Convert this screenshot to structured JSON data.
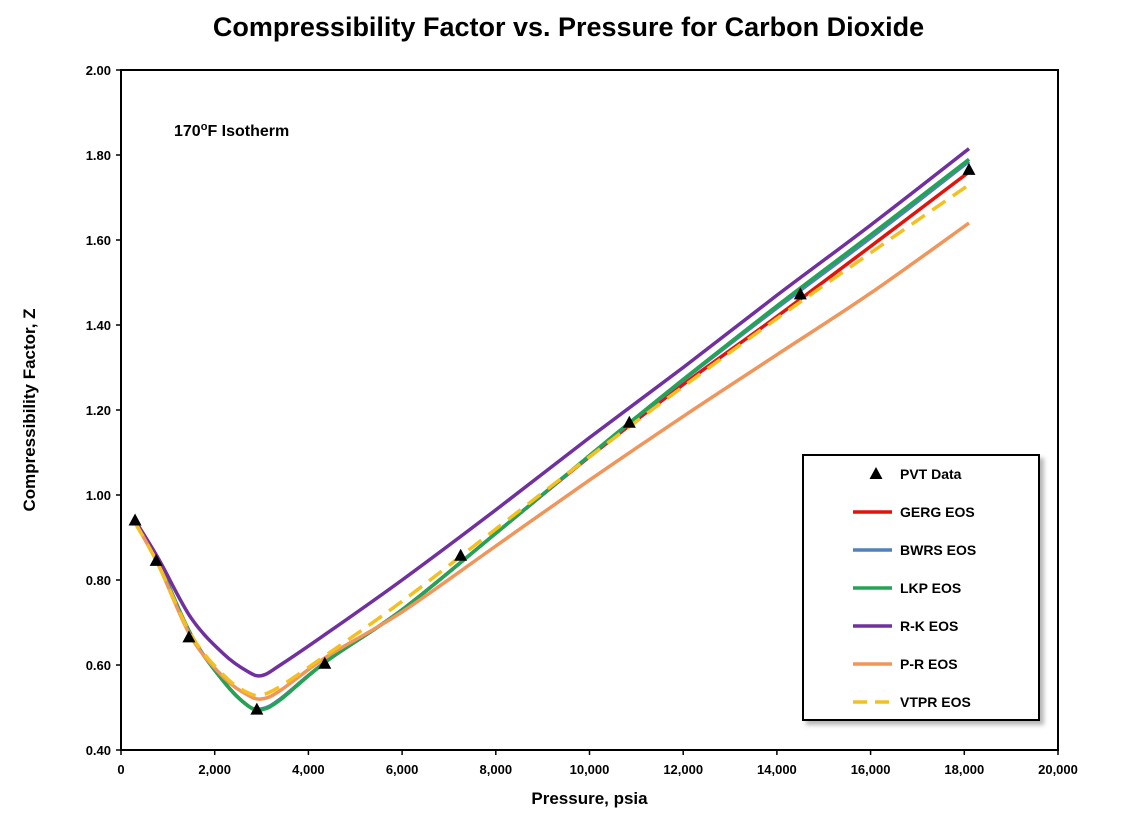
{
  "chart_data": {
    "type": "line",
    "title": "Compressibility Factor vs. Pressure for Carbon Dioxide",
    "xlabel": "Pressure, psia",
    "ylabel": "Compressibility  Factor, Z",
    "xlim": [
      0,
      20000
    ],
    "ylim": [
      0.4,
      2.0
    ],
    "xticks": [
      0,
      2000,
      4000,
      6000,
      8000,
      10000,
      12000,
      14000,
      16000,
      18000,
      20000
    ],
    "xtick_labels": [
      "0",
      "2,000",
      "4,000",
      "6,000",
      "8,000",
      "10,000",
      "12,000",
      "14,000",
      "16,000",
      "18,000",
      "20,000"
    ],
    "yticks": [
      0.4,
      0.6,
      0.8,
      1.0,
      1.2,
      1.4,
      1.6,
      1.8,
      2.0
    ],
    "ytick_labels": [
      "0.40",
      "0.60",
      "0.80",
      "1.00",
      "1.20",
      "1.40",
      "1.60",
      "1.80",
      "2.00"
    ],
    "annotation": {
      "prefix": "170",
      "superscript": "o",
      "suffix": "F Isotherm"
    },
    "legend_position": "bottom-right",
    "grid": false,
    "scatter": {
      "name": "PVT Data",
      "marker": "triangle",
      "color": "#000000",
      "x": [
        300,
        750,
        1450,
        2900,
        4350,
        7250,
        10850,
        14500,
        18100
      ],
      "y": [
        0.94,
        0.845,
        0.665,
        0.495,
        0.603,
        0.857,
        1.17,
        1.472,
        1.765
      ]
    },
    "series": [
      {
        "name": "GERG EOS",
        "color": "#e3120b",
        "dash": false,
        "x": [
          300,
          800,
          1500,
          2200,
          2700,
          3000,
          3400,
          4400,
          6000,
          8000,
          10000,
          12000,
          14000,
          16000,
          18100
        ],
        "y": [
          0.94,
          0.84,
          0.67,
          0.56,
          0.505,
          0.495,
          0.52,
          0.61,
          0.73,
          0.91,
          1.09,
          1.26,
          1.42,
          1.585,
          1.76
        ]
      },
      {
        "name": "BWRS EOS",
        "color": "#4f81bd",
        "dash": false,
        "x": [
          300,
          800,
          1500,
          2200,
          2700,
          3000,
          3400,
          4400,
          6000,
          8000,
          10000,
          12000,
          14000,
          16000,
          18100
        ],
        "y": [
          0.94,
          0.84,
          0.67,
          0.56,
          0.505,
          0.497,
          0.52,
          0.61,
          0.73,
          0.91,
          1.092,
          1.27,
          1.44,
          1.605,
          1.785
        ]
      },
      {
        "name": "LKP EOS",
        "color": "#23a455",
        "dash": false,
        "x": [
          300,
          800,
          1500,
          2200,
          2700,
          3000,
          3400,
          4400,
          6000,
          8000,
          10000,
          12000,
          14000,
          16000,
          18100
        ],
        "y": [
          0.94,
          0.84,
          0.67,
          0.56,
          0.505,
          0.495,
          0.518,
          0.61,
          0.73,
          0.91,
          1.093,
          1.272,
          1.445,
          1.612,
          1.79
        ]
      },
      {
        "name": "R-K EOS",
        "color": "#7030a0",
        "dash": false,
        "x": [
          300,
          800,
          1500,
          2200,
          2700,
          3000,
          3400,
          4400,
          6000,
          8000,
          10000,
          12000,
          14000,
          16000,
          18100
        ],
        "y": [
          0.94,
          0.85,
          0.71,
          0.625,
          0.585,
          0.575,
          0.6,
          0.675,
          0.8,
          0.965,
          1.135,
          1.3,
          1.47,
          1.635,
          1.815
        ]
      },
      {
        "name": "P-R EOS",
        "color": "#f0965a",
        "dash": false,
        "x": [
          300,
          800,
          1500,
          2200,
          2700,
          3000,
          3400,
          4400,
          6000,
          8000,
          10000,
          12000,
          14000,
          16000,
          18100
        ],
        "y": [
          0.935,
          0.835,
          0.665,
          0.57,
          0.53,
          0.52,
          0.54,
          0.62,
          0.725,
          0.88,
          1.035,
          1.185,
          1.33,
          1.475,
          1.64
        ]
      },
      {
        "name": "VTPR EOS",
        "color": "#f4c020",
        "dash": true,
        "x": [
          300,
          800,
          1500,
          2200,
          2700,
          3000,
          3400,
          4400,
          6000,
          8000,
          10000,
          12000,
          14000,
          16000,
          18100
        ],
        "y": [
          0.935,
          0.835,
          0.67,
          0.575,
          0.535,
          0.53,
          0.55,
          0.625,
          0.75,
          0.92,
          1.09,
          1.255,
          1.415,
          1.57,
          1.73
        ]
      }
    ]
  }
}
